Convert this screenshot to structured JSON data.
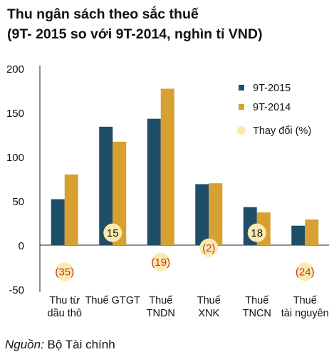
{
  "title": {
    "line1": "Thu ngân sách theo sắc thuế",
    "line2": "(9T- 2015 so với 9T-2014, nghìn tỉ VND)"
  },
  "source": {
    "label": "Nguồn:",
    "text": " Bộ Tài chính"
  },
  "chart_data": {
    "type": "bar",
    "categories": [
      [
        "Thu từ",
        "dầu thô"
      ],
      [
        "Thuế GTGT"
      ],
      [
        "Thuế",
        "TNDN"
      ],
      [
        "Thuế",
        "XNK"
      ],
      [
        "Thuế",
        "TNCN"
      ],
      [
        "Thuế",
        "tài nguyên"
      ]
    ],
    "series": [
      {
        "name": "9T-2015",
        "values": [
          52,
          134,
          143,
          69,
          43,
          22
        ],
        "color": "#1f4e68"
      },
      {
        "name": "9T-2014",
        "values": [
          80,
          117,
          177,
          70,
          37,
          29
        ],
        "color": "#d8a030"
      }
    ],
    "change": {
      "name": "Thay đổi (%)",
      "labels": [
        "(35)",
        "15",
        "(19)",
        "(2)",
        "18",
        "(24)"
      ],
      "values": [
        -35,
        15,
        -19,
        -2,
        18,
        -24
      ],
      "bubble_color": "#fbeab0",
      "negative_text_color": "#c0392b",
      "positive_text_color": "#111111"
    },
    "ylim": [
      -50,
      200
    ],
    "yticks": [
      200,
      150,
      100,
      50,
      0,
      -50
    ],
    "legend_position": "top-right",
    "grid": false
  }
}
